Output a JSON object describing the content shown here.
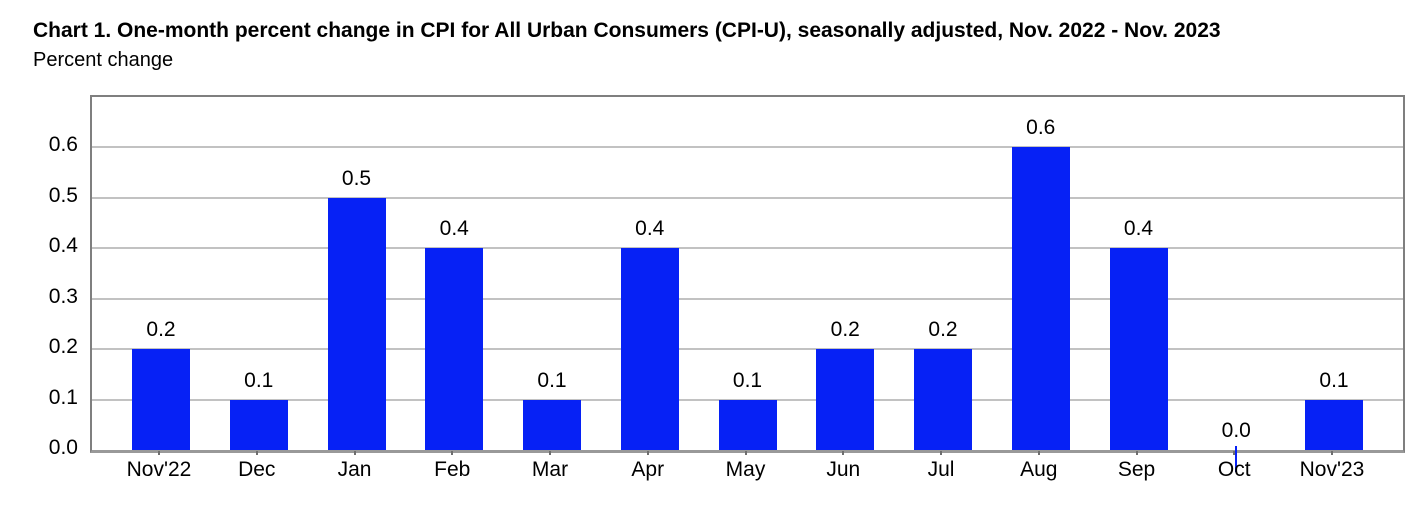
{
  "header": {
    "title": "Chart 1. One-month percent change in CPI for All Urban Consumers (CPI-U), seasonally adjusted, Nov. 2022 - Nov. 2023",
    "subtitle": "Percent change"
  },
  "chart_data": {
    "type": "bar",
    "title": "Chart 1. One-month percent change in CPI for All Urban Consumers (CPI-U), seasonally adjusted, Nov. 2022 - Nov. 2023",
    "ylabel": "Percent change",
    "xlabel": "",
    "categories": [
      "Nov'22",
      "Dec",
      "Jan",
      "Feb",
      "Mar",
      "Apr",
      "May",
      "Jun",
      "Jul",
      "Aug",
      "Sep",
      "Oct",
      "Nov'23"
    ],
    "values": [
      0.2,
      0.1,
      0.5,
      0.4,
      0.1,
      0.4,
      0.1,
      0.2,
      0.2,
      0.6,
      0.4,
      0.0,
      0.1
    ],
    "data_labels": [
      "0.2",
      "0.1",
      "0.5",
      "0.4",
      "0.1",
      "0.4",
      "0.1",
      "0.2",
      "0.2",
      "0.6",
      "0.4",
      "0.0",
      "0.1"
    ],
    "y_ticks": [
      0.0,
      0.1,
      0.2,
      0.3,
      0.4,
      0.5,
      0.6
    ],
    "y_tick_labels": [
      "0.0",
      "0.1",
      "0.2",
      "0.3",
      "0.4",
      "0.5",
      "0.6"
    ],
    "ylim": [
      0.0,
      0.7
    ],
    "grid": true,
    "legend": false
  },
  "colors": {
    "bar": "#0621f5",
    "grid": "#c2c2c2",
    "plot_border": "#7f7f7f",
    "axis_line": "#999999",
    "text": "#000000",
    "background": "#ffffff"
  }
}
